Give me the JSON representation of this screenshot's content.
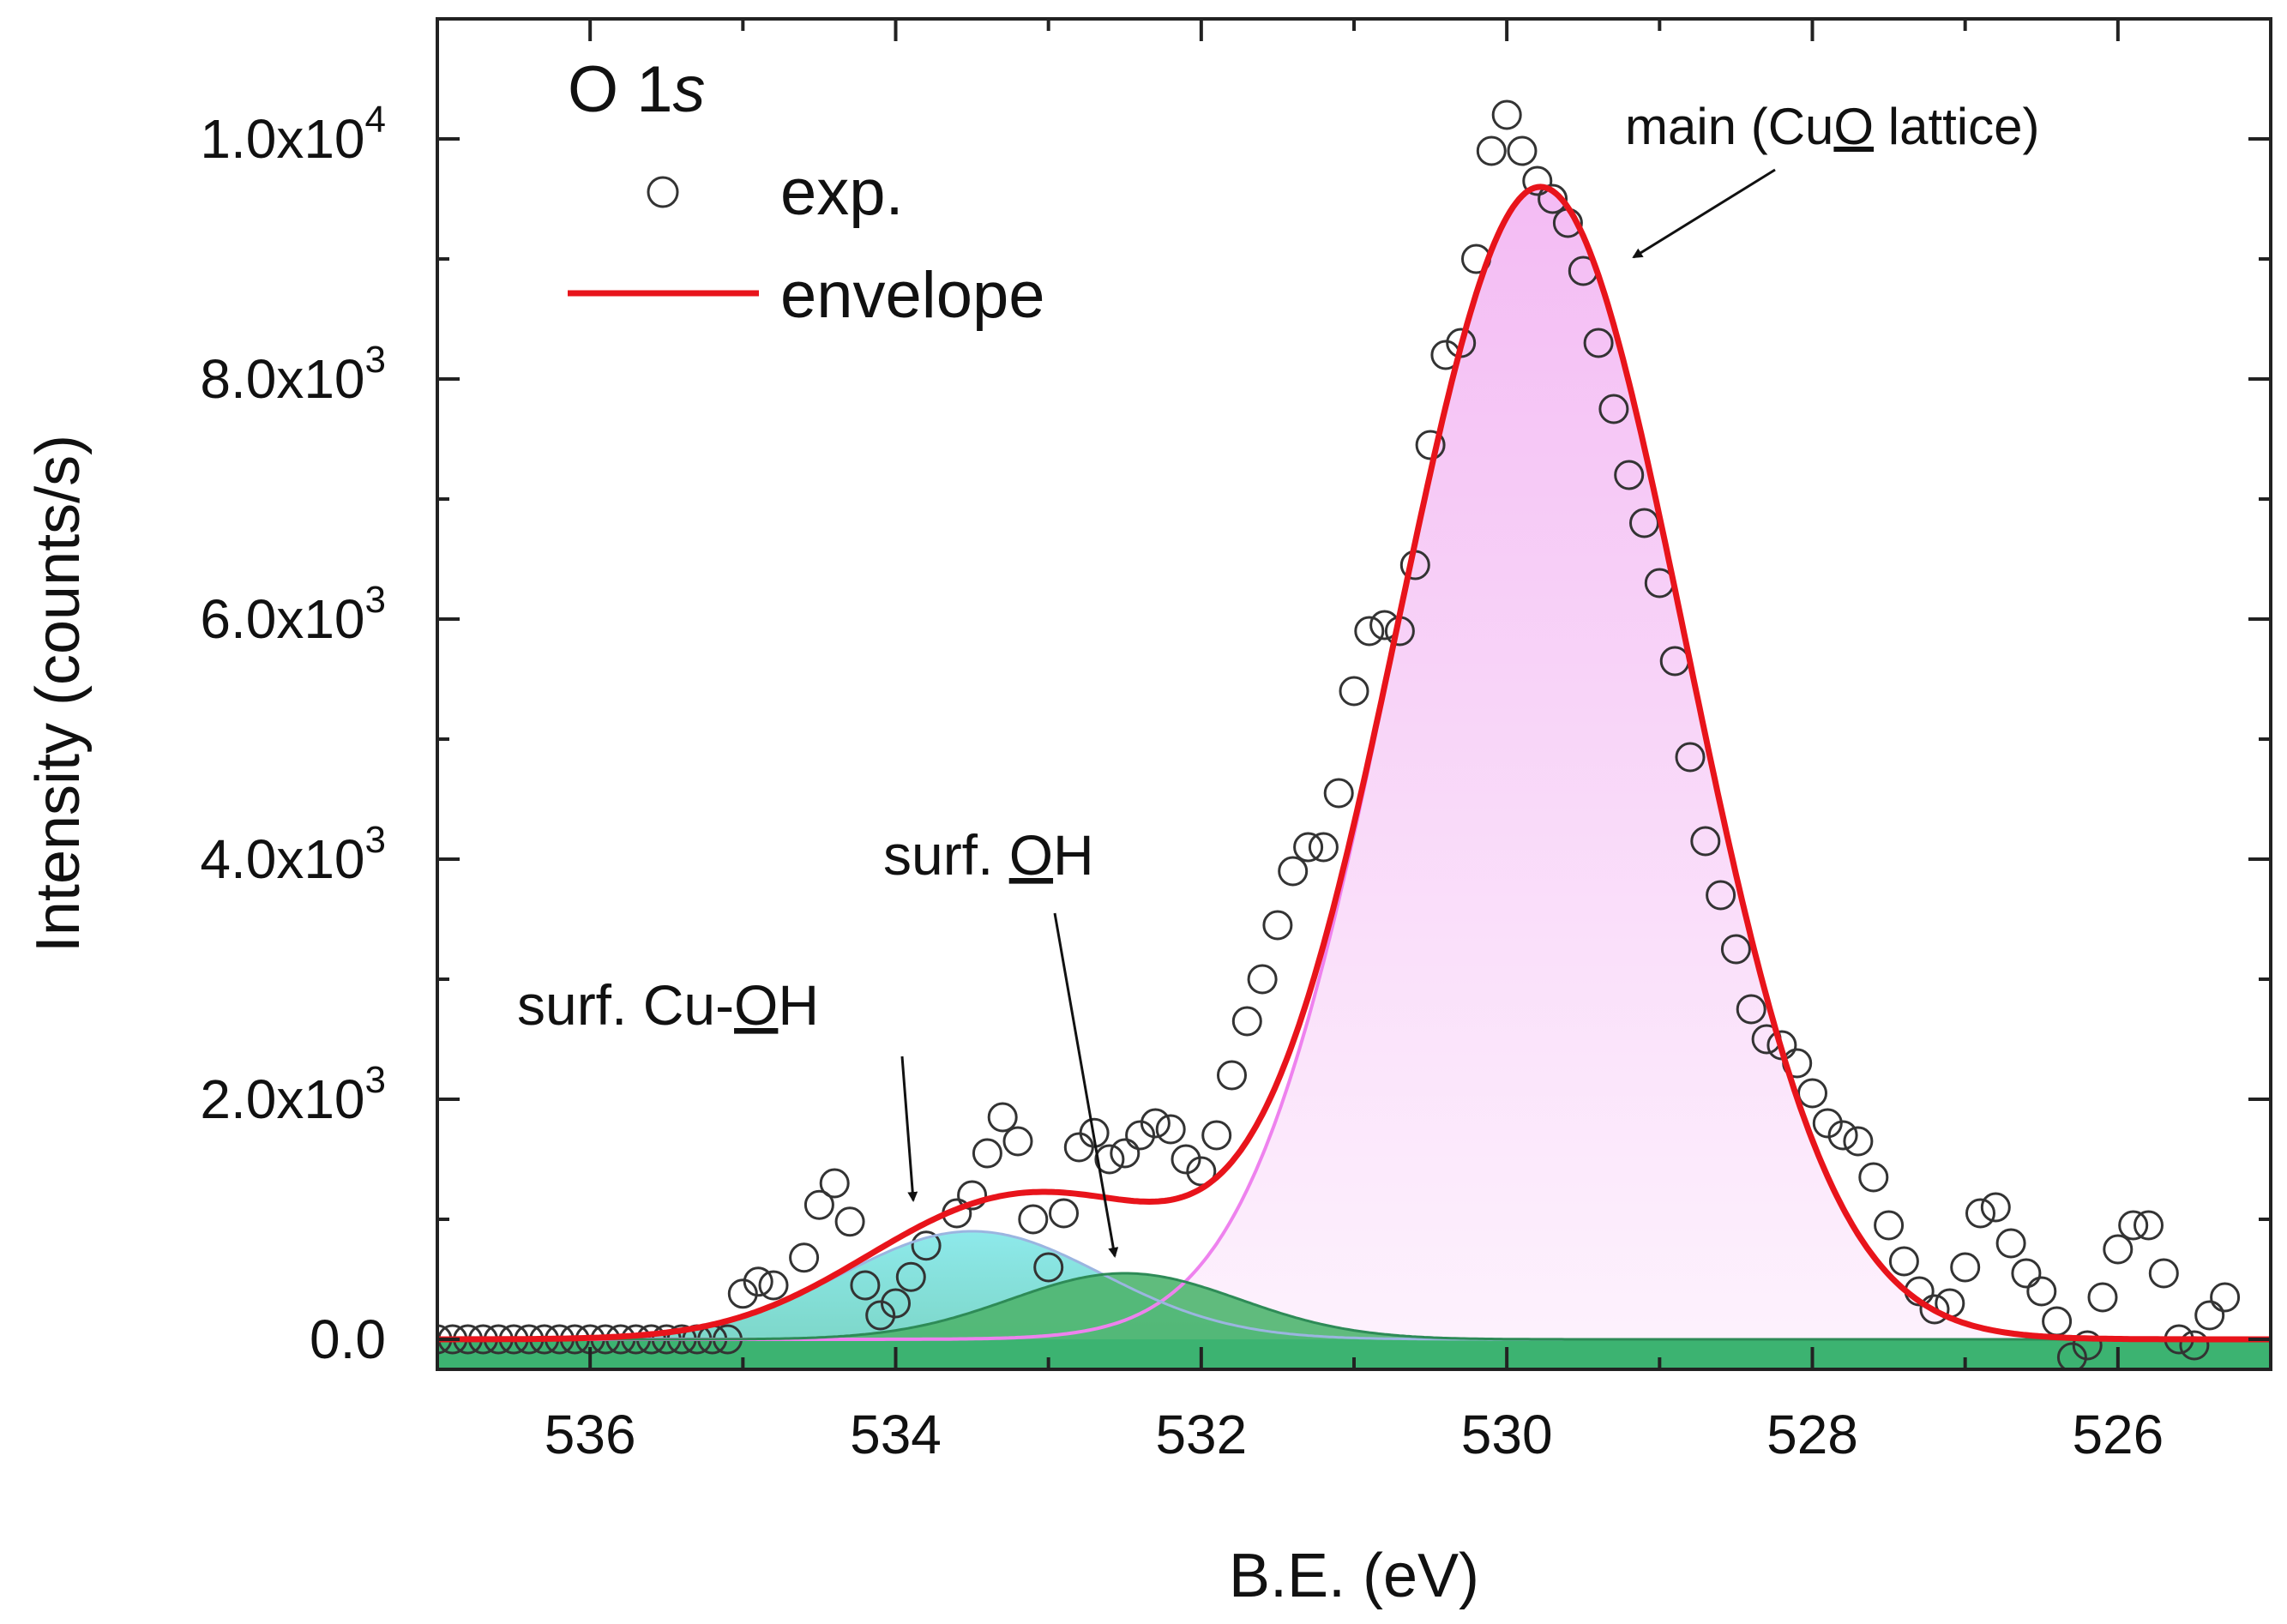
{
  "chart_data": {
    "type": "line",
    "title": "O 1s",
    "title_prefix": "O 1",
    "title_italic": "s",
    "xlabel": "B.E. (eV)",
    "ylabel": "Intensity (counts/s)",
    "xlim": [
      537,
      525
    ],
    "ylim": [
      -250,
      11000
    ],
    "x_reversed": true,
    "x_ticks": [
      536,
      534,
      532,
      530,
      528,
      526
    ],
    "x_tick_labels": [
      "536",
      "534",
      "532",
      "530",
      "528",
      "526"
    ],
    "y_ticks": [
      0,
      2000,
      4000,
      6000,
      8000,
      10000
    ],
    "y_tick_labels": [
      {
        "value": 0,
        "mantissa": "0.0",
        "exp": ""
      },
      {
        "value": 2000,
        "mantissa": "2.0x10",
        "exp": "3"
      },
      {
        "value": 4000,
        "mantissa": "4.0x10",
        "exp": "3"
      },
      {
        "value": 6000,
        "mantissa": "6.0x10",
        "exp": "3"
      },
      {
        "value": 8000,
        "mantissa": "8.0x10",
        "exp": "3"
      },
      {
        "value": 10000,
        "mantissa": "1.0x10",
        "exp": "4"
      }
    ],
    "legend": {
      "position": "top-left",
      "entries": [
        {
          "label": "exp.",
          "marker": "open-circle"
        },
        {
          "label": "envelope",
          "marker": "line",
          "color": "#e8141b"
        }
      ]
    },
    "components": [
      {
        "name": "surf. Cu-OH",
        "center": 533.5,
        "amplitude": 900,
        "sigma": 0.85,
        "fill": "#7fe3e3",
        "line": "#9bb5e0"
      },
      {
        "name": "surf. OH",
        "center": 532.5,
        "amplitude": 550,
        "sigma": 0.75,
        "fill": "#4fb56f",
        "line": "#2e8b57"
      },
      {
        "name": "main (CuO lattice)",
        "center": 529.78,
        "amplitude": 9600,
        "sigma": 0.95,
        "fill": "#f4c4f4",
        "line": "#ee82ee"
      }
    ],
    "envelope_color": "#e8141b",
    "background_color": "#3cb371",
    "annotations": [
      {
        "id": "main",
        "parts": [
          "main (Cu",
          "O",
          " lattice)"
        ],
        "underline_index": 1,
        "arrow_to": [
          529.3,
          9150
        ]
      },
      {
        "id": "surfoh",
        "parts": [
          "surf. ",
          "O",
          "H"
        ],
        "underline_index": 1,
        "arrow_to": [
          532.6,
          700
        ]
      },
      {
        "id": "cuoh",
        "parts": [
          "surf. Cu-",
          "O",
          "H"
        ],
        "underline_index": 1,
        "arrow_to": [
          533.9,
          1200
        ]
      }
    ],
    "exp_points": [
      [
        537.0,
        0
      ],
      [
        536.9,
        0
      ],
      [
        536.8,
        0
      ],
      [
        536.7,
        0
      ],
      [
        536.6,
        0
      ],
      [
        536.5,
        0
      ],
      [
        536.4,
        0
      ],
      [
        536.3,
        0
      ],
      [
        536.2,
        0
      ],
      [
        536.1,
        0
      ],
      [
        536.0,
        0
      ],
      [
        535.9,
        0
      ],
      [
        535.8,
        0
      ],
      [
        535.7,
        0
      ],
      [
        535.6,
        0
      ],
      [
        535.5,
        0
      ],
      [
        535.4,
        0
      ],
      [
        535.3,
        0
      ],
      [
        535.2,
        0
      ],
      [
        535.1,
        0
      ],
      [
        535.0,
        380
      ],
      [
        534.9,
        480
      ],
      [
        534.8,
        450
      ],
      [
        534.6,
        680
      ],
      [
        534.5,
        1120
      ],
      [
        534.4,
        1300
      ],
      [
        534.3,
        980
      ],
      [
        534.2,
        450
      ],
      [
        534.1,
        200
      ],
      [
        534.0,
        300
      ],
      [
        533.9,
        520
      ],
      [
        533.8,
        780
      ],
      [
        533.6,
        1050
      ],
      [
        533.5,
        1200
      ],
      [
        533.4,
        1550
      ],
      [
        533.3,
        1850
      ],
      [
        533.2,
        1650
      ],
      [
        533.1,
        1000
      ],
      [
        533.0,
        600
      ],
      [
        532.9,
        1050
      ],
      [
        532.8,
        1600
      ],
      [
        532.7,
        1720
      ],
      [
        532.6,
        1500
      ],
      [
        532.5,
        1550
      ],
      [
        532.4,
        1700
      ],
      [
        532.3,
        1800
      ],
      [
        532.2,
        1750
      ],
      [
        532.1,
        1500
      ],
      [
        532.0,
        1400
      ],
      [
        531.9,
        1700
      ],
      [
        531.8,
        2200
      ],
      [
        531.7,
        2650
      ],
      [
        531.6,
        3000
      ],
      [
        531.5,
        3450
      ],
      [
        531.4,
        3900
      ],
      [
        531.3,
        4100
      ],
      [
        531.2,
        4100
      ],
      [
        531.1,
        4550
      ],
      [
        531.0,
        5400
      ],
      [
        530.9,
        5900
      ],
      [
        530.8,
        5950
      ],
      [
        530.7,
        5900
      ],
      [
        530.6,
        6450
      ],
      [
        530.5,
        7450
      ],
      [
        530.4,
        8200
      ],
      [
        530.3,
        8300
      ],
      [
        530.2,
        9000
      ],
      [
        530.1,
        9900
      ],
      [
        530.0,
        10200
      ],
      [
        529.9,
        9900
      ],
      [
        529.8,
        9650
      ],
      [
        529.7,
        9500
      ],
      [
        529.6,
        9300
      ],
      [
        529.5,
        8900
      ],
      [
        529.4,
        8300
      ],
      [
        529.3,
        7750
      ],
      [
        529.2,
        7200
      ],
      [
        529.1,
        6800
      ],
      [
        529.0,
        6300
      ],
      [
        528.9,
        5650
      ],
      [
        528.8,
        4850
      ],
      [
        528.7,
        4150
      ],
      [
        528.6,
        3700
      ],
      [
        528.5,
        3250
      ],
      [
        528.4,
        2750
      ],
      [
        528.3,
        2500
      ],
      [
        528.2,
        2450
      ],
      [
        528.1,
        2300
      ],
      [
        528.0,
        2050
      ],
      [
        527.9,
        1800
      ],
      [
        527.8,
        1700
      ],
      [
        527.7,
        1650
      ],
      [
        527.6,
        1350
      ],
      [
        527.5,
        950
      ],
      [
        527.4,
        650
      ],
      [
        527.3,
        400
      ],
      [
        527.2,
        250
      ],
      [
        527.1,
        300
      ],
      [
        527.0,
        600
      ],
      [
        526.9,
        1050
      ],
      [
        526.8,
        1100
      ],
      [
        526.7,
        800
      ],
      [
        526.6,
        550
      ],
      [
        526.5,
        400
      ],
      [
        526.4,
        150
      ],
      [
        526.3,
        -150
      ],
      [
        526.2,
        -50
      ],
      [
        526.1,
        350
      ],
      [
        526.0,
        750
      ],
      [
        525.9,
        950
      ],
      [
        525.8,
        950
      ],
      [
        525.7,
        550
      ],
      [
        525.6,
        0
      ],
      [
        525.5,
        -50
      ],
      [
        525.4,
        200
      ],
      [
        525.3,
        350
      ]
    ]
  }
}
